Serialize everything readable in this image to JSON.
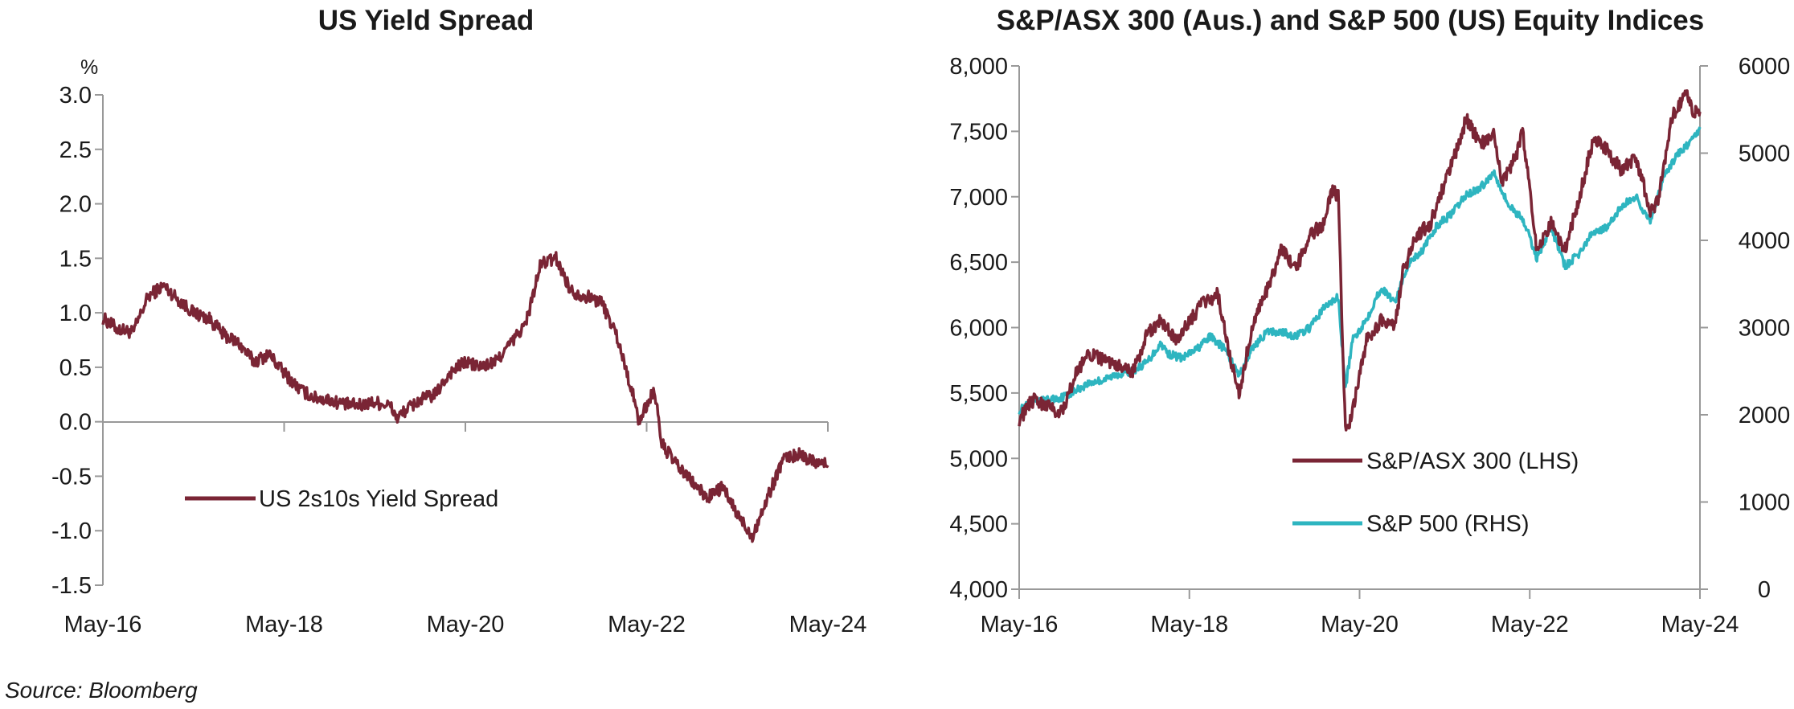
{
  "charts": [
    {
      "title": "US Yield Spread",
      "unit_label": "%",
      "legend": [
        {
          "label": "US 2s10s Yield Spread",
          "color": "#7a2535"
        }
      ]
    },
    {
      "title": "S&P/ASX 300 (Aus.) and S&P 500 (US) Equity Indices",
      "legend": [
        {
          "label": "S&P/ASX 300 (LHS)",
          "color": "#7a2535"
        },
        {
          "label": "S&P 500 (RHS)",
          "color": "#2eb5c0"
        }
      ]
    }
  ],
  "source": "Source: Bloomberg",
  "chart_data": [
    {
      "type": "line",
      "title": "US Yield Spread",
      "ylabel": "%",
      "ylim": [
        -1.5,
        3.0
      ],
      "y_ticks": [
        "3.0",
        "2.5",
        "2.0",
        "1.5",
        "1.0",
        "0.5",
        "0.0",
        "-0.5",
        "-1.0",
        "-1.5"
      ],
      "x_ticks": [
        "May-16",
        "May-18",
        "May-20",
        "May-22",
        "May-24"
      ],
      "x_range": [
        "2016-05",
        "2024-05"
      ],
      "series": [
        {
          "name": "US 2s10s Yield Spread",
          "color": "#7a2535",
          "x": [
            "2016-05",
            "2016-07",
            "2016-09",
            "2016-11",
            "2017-01",
            "2017-03",
            "2017-05",
            "2017-07",
            "2017-09",
            "2017-11",
            "2018-01",
            "2018-03",
            "2018-05",
            "2018-07",
            "2018-09",
            "2018-11",
            "2019-01",
            "2019-03",
            "2019-05",
            "2019-07",
            "2019-08",
            "2019-09",
            "2019-11",
            "2020-01",
            "2020-03",
            "2020-05",
            "2020-07",
            "2020-09",
            "2020-11",
            "2021-01",
            "2021-03",
            "2021-05",
            "2021-07",
            "2021-09",
            "2021-11",
            "2022-01",
            "2022-03",
            "2022-04",
            "2022-06",
            "2022-07",
            "2022-09",
            "2022-11",
            "2023-01",
            "2023-03",
            "2023-05",
            "2023-07",
            "2023-09",
            "2023-11",
            "2024-01",
            "2024-03",
            "2024-05"
          ],
          "values": [
            0.95,
            0.85,
            0.82,
            1.15,
            1.25,
            1.12,
            1.0,
            0.95,
            0.8,
            0.72,
            0.55,
            0.62,
            0.45,
            0.3,
            0.22,
            0.2,
            0.16,
            0.15,
            0.18,
            0.15,
            0.03,
            0.1,
            0.2,
            0.25,
            0.45,
            0.55,
            0.5,
            0.55,
            0.72,
            0.9,
            1.45,
            1.5,
            1.2,
            1.15,
            1.1,
            0.8,
            0.3,
            0.0,
            0.3,
            -0.2,
            -0.4,
            -0.55,
            -0.7,
            -0.6,
            -0.85,
            -1.05,
            -0.7,
            -0.35,
            -0.3,
            -0.35,
            -0.4
          ]
        }
      ]
    },
    {
      "type": "line",
      "title": "S&P/ASX 300 (Aus.) and S&P 500 (US) Equity Indices",
      "ylim_left": [
        4000,
        8000
      ],
      "ylim_right": [
        0,
        6000
      ],
      "y_ticks_left": [
        "8,000",
        "7,500",
        "7,000",
        "6,500",
        "6,000",
        "5,500",
        "5,000",
        "4,500",
        "4,000"
      ],
      "y_ticks_right": [
        "6000",
        "5000",
        "4000",
        "3000",
        "2000",
        "1000",
        "0"
      ],
      "x_ticks": [
        "May-16",
        "May-18",
        "May-20",
        "May-22",
        "May-24"
      ],
      "x_range": [
        "2016-05",
        "2024-05"
      ],
      "series": [
        {
          "name": "S&P/ASX 300 (LHS)",
          "axis": "left",
          "color": "#7a2535",
          "x": [
            "2016-05",
            "2016-07",
            "2016-09",
            "2016-11",
            "2017-01",
            "2017-03",
            "2017-05",
            "2017-07",
            "2017-09",
            "2017-11",
            "2018-01",
            "2018-03",
            "2018-05",
            "2018-07",
            "2018-09",
            "2018-11",
            "2018-12",
            "2019-02",
            "2019-04",
            "2019-06",
            "2019-08",
            "2019-10",
            "2019-12",
            "2020-01",
            "2020-02",
            "2020-03",
            "2020-04",
            "2020-06",
            "2020-08",
            "2020-10",
            "2020-11",
            "2021-01",
            "2021-03",
            "2021-05",
            "2021-07",
            "2021-08",
            "2021-10",
            "2021-12",
            "2022-01",
            "2022-03",
            "2022-04",
            "2022-06",
            "2022-08",
            "2022-10",
            "2022-12",
            "2023-02",
            "2023-04",
            "2023-06",
            "2023-08",
            "2023-10",
            "2023-11",
            "2024-01",
            "2024-03",
            "2024-04",
            "2024-05"
          ],
          "values": [
            5300,
            5450,
            5400,
            5350,
            5650,
            5800,
            5750,
            5700,
            5650,
            5950,
            6050,
            5900,
            6050,
            6200,
            6250,
            5700,
            5500,
            6050,
            6300,
            6600,
            6450,
            6700,
            6800,
            7050,
            7000,
            5200,
            5350,
            5900,
            6050,
            6000,
            6400,
            6700,
            6800,
            7100,
            7400,
            7600,
            7400,
            7500,
            7100,
            7300,
            7500,
            6600,
            6800,
            6600,
            7000,
            7450,
            7350,
            7200,
            7300,
            6900,
            6950,
            7600,
            7800,
            7650,
            7650
          ]
        },
        {
          "name": "S&P 500 (RHS)",
          "axis": "right",
          "color": "#2eb5c0",
          "x": [
            "2016-05",
            "2016-07",
            "2016-09",
            "2016-11",
            "2017-01",
            "2017-03",
            "2017-05",
            "2017-07",
            "2017-09",
            "2017-11",
            "2018-01",
            "2018-02",
            "2018-04",
            "2018-06",
            "2018-08",
            "2018-10",
            "2018-12",
            "2019-02",
            "2019-04",
            "2019-06",
            "2019-08",
            "2019-10",
            "2019-12",
            "2020-02",
            "2020-03",
            "2020-04",
            "2020-06",
            "2020-08",
            "2020-10",
            "2020-12",
            "2021-02",
            "2021-04",
            "2021-06",
            "2021-08",
            "2021-10",
            "2021-12",
            "2022-02",
            "2022-04",
            "2022-06",
            "2022-08",
            "2022-10",
            "2022-12",
            "2023-02",
            "2023-04",
            "2023-06",
            "2023-08",
            "2023-10",
            "2023-12",
            "2024-02",
            "2024-04",
            "2024-05"
          ],
          "values": [
            2050,
            2150,
            2170,
            2200,
            2280,
            2370,
            2400,
            2470,
            2500,
            2600,
            2820,
            2700,
            2650,
            2750,
            2900,
            2750,
            2450,
            2780,
            2950,
            2950,
            2900,
            3000,
            3230,
            3350,
            2300,
            2850,
            3100,
            3450,
            3300,
            3750,
            3900,
            4180,
            4300,
            4520,
            4600,
            4780,
            4400,
            4250,
            3800,
            4150,
            3700,
            3850,
            4100,
            4150,
            4400,
            4500,
            4200,
            4750,
            5000,
            5150,
            5300
          ]
        }
      ]
    }
  ]
}
